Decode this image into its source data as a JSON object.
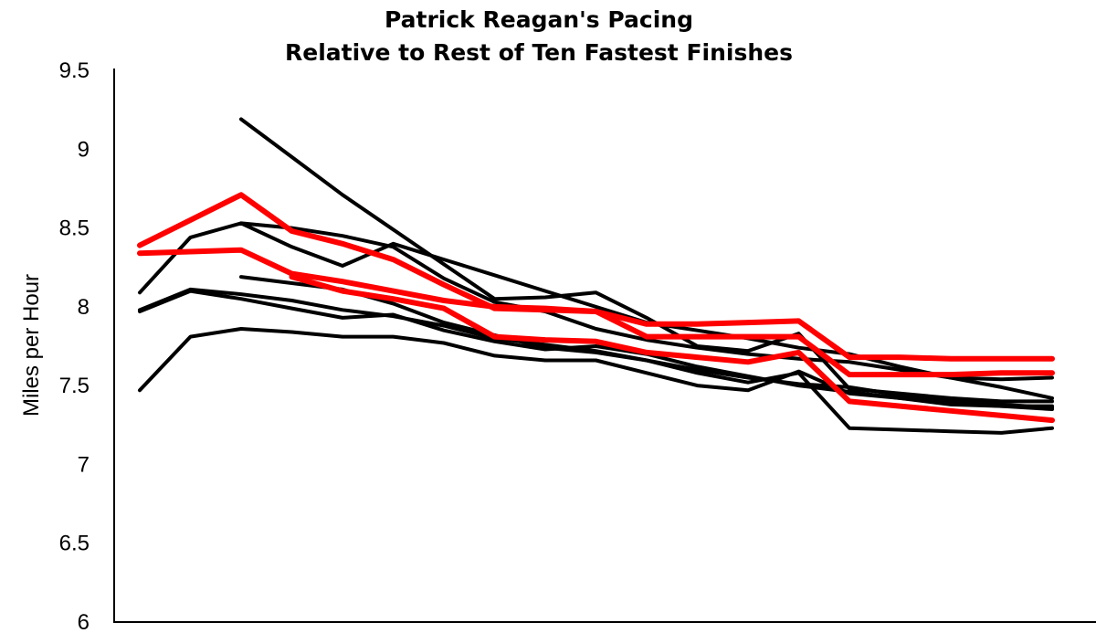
{
  "chart_data": {
    "type": "line",
    "title_lines": [
      "Patrick Reagan's Pacing",
      "Relative to Rest of Ten Fastest Finishes"
    ],
    "xlabel": "",
    "ylabel": "Miles per Hour",
    "ylim": [
      6,
      9.5
    ],
    "yticks": [
      6,
      6.5,
      7,
      7.5,
      8,
      8.5,
      9,
      9.5
    ],
    "ytick_labels": [
      "6",
      "6.5",
      "7",
      "7.5",
      "8",
      "8.5",
      "9",
      "9.5"
    ],
    "x": [
      1,
      2,
      3,
      4,
      5,
      6,
      7,
      8,
      9,
      10,
      11,
      12,
      13,
      14,
      15,
      16,
      17,
      18,
      19
    ],
    "grid": false,
    "legend": "none",
    "colors": {
      "highlight": "#ff0000",
      "other": "#000000",
      "axis": "#000000"
    },
    "series": [
      {
        "color": "#000000",
        "values": [
          8.09,
          8.44,
          8.53,
          8.38,
          8.26,
          8.4,
          8.3,
          8.2,
          8.1,
          8.0,
          7.9,
          7.85,
          7.8,
          7.74,
          7.7,
          7.62,
          7.55,
          7.49,
          7.42
        ]
      },
      {
        "color": "#000000",
        "values": [
          null,
          null,
          9.19,
          8.95,
          8.71,
          8.49,
          8.27,
          8.05,
          8.06,
          8.09,
          7.93,
          7.75,
          7.72,
          7.83,
          7.48,
          7.45,
          7.42,
          7.4,
          7.4
        ]
      },
      {
        "color": "#000000",
        "values": [
          7.97,
          8.1,
          8.05,
          7.99,
          7.93,
          7.95,
          7.85,
          7.78,
          7.73,
          7.75,
          7.7,
          7.62,
          7.56,
          7.5,
          7.46,
          7.42,
          7.39,
          7.37,
          7.35
        ]
      },
      {
        "color": "#000000",
        "values": [
          7.98,
          8.11,
          8.08,
          8.04,
          7.98,
          7.94,
          7.88,
          7.8,
          7.76,
          7.72,
          7.66,
          7.6,
          7.55,
          7.51,
          7.49,
          7.44,
          7.4,
          7.38,
          7.36
        ]
      },
      {
        "color": "#000000",
        "values": [
          null,
          null,
          8.19,
          8.15,
          8.11,
          8.02,
          7.9,
          7.82,
          7.74,
          7.71,
          7.66,
          7.58,
          7.52,
          7.58,
          7.23,
          7.22,
          7.21,
          7.2,
          7.23
        ]
      },
      {
        "color": "#000000",
        "values": [
          7.47,
          7.81,
          7.86,
          7.84,
          7.81,
          7.81,
          7.77,
          7.69,
          7.66,
          7.66,
          7.58,
          7.5,
          7.47,
          7.59,
          7.45,
          7.42,
          7.38,
          7.37,
          7.37
        ]
      },
      {
        "color": "#000000",
        "values": [
          null,
          null,
          8.53,
          8.5,
          8.45,
          8.38,
          8.18,
          8.03,
          7.97,
          7.86,
          7.79,
          7.74,
          7.7,
          7.67,
          7.65,
          7.6,
          7.55,
          7.54,
          7.55
        ]
      },
      {
        "color": "#ff0000",
        "values": [
          8.39,
          8.55,
          8.71,
          8.48,
          8.4,
          8.3,
          8.14,
          7.99,
          7.98,
          7.97,
          7.89,
          7.89,
          7.9,
          7.91,
          7.68,
          7.68,
          7.67,
          7.67,
          7.67
        ]
      },
      {
        "color": "#ff0000",
        "values": [
          8.34,
          8.35,
          8.36,
          8.21,
          8.16,
          8.1,
          8.04,
          8.0,
          7.99,
          7.97,
          7.81,
          7.81,
          7.81,
          7.81,
          7.57,
          7.57,
          7.57,
          7.58,
          7.58
        ]
      },
      {
        "color": "#ff0000",
        "values": [
          null,
          null,
          null,
          8.19,
          8.1,
          8.05,
          7.99,
          7.81,
          7.79,
          7.78,
          7.71,
          7.68,
          7.65,
          7.71,
          7.4,
          7.37,
          7.34,
          7.31,
          7.28
        ]
      }
    ]
  }
}
